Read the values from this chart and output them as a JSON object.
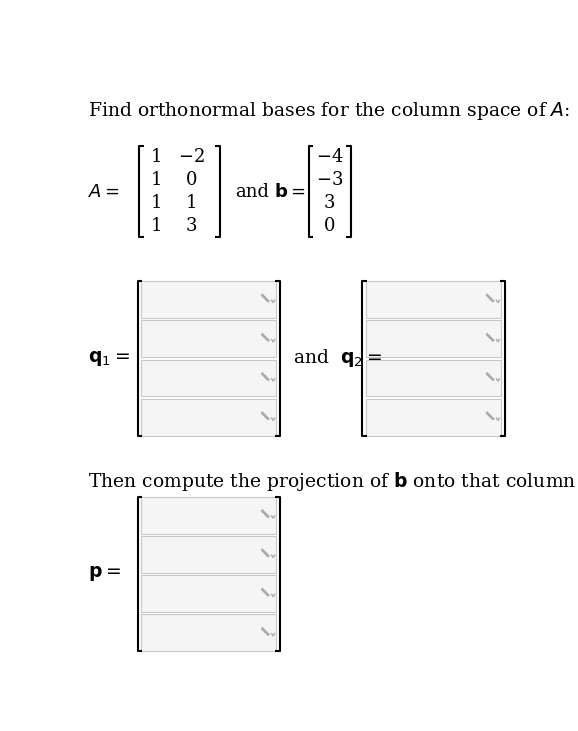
{
  "title_text": "Find orthonormal bases for the column space of $A$:",
  "A_matrix": [
    [
      1,
      -2
    ],
    [
      1,
      0
    ],
    [
      1,
      1
    ],
    [
      1,
      3
    ]
  ],
  "b_vector": [
    -4,
    -3,
    3,
    0
  ],
  "projection_text": "Then compute the projection of $\\mathbf{b}$ onto that column space:",
  "bg_color": "#ffffff",
  "box_face_color": "#f5f5f5",
  "box_edge_color": "#c8c8c8",
  "text_color": "#000000",
  "bracket_color": "#000000",
  "pencil_color": "#999999",
  "title_fontsize": 13.5,
  "matrix_fontsize": 13,
  "label_fontsize": 13.5
}
